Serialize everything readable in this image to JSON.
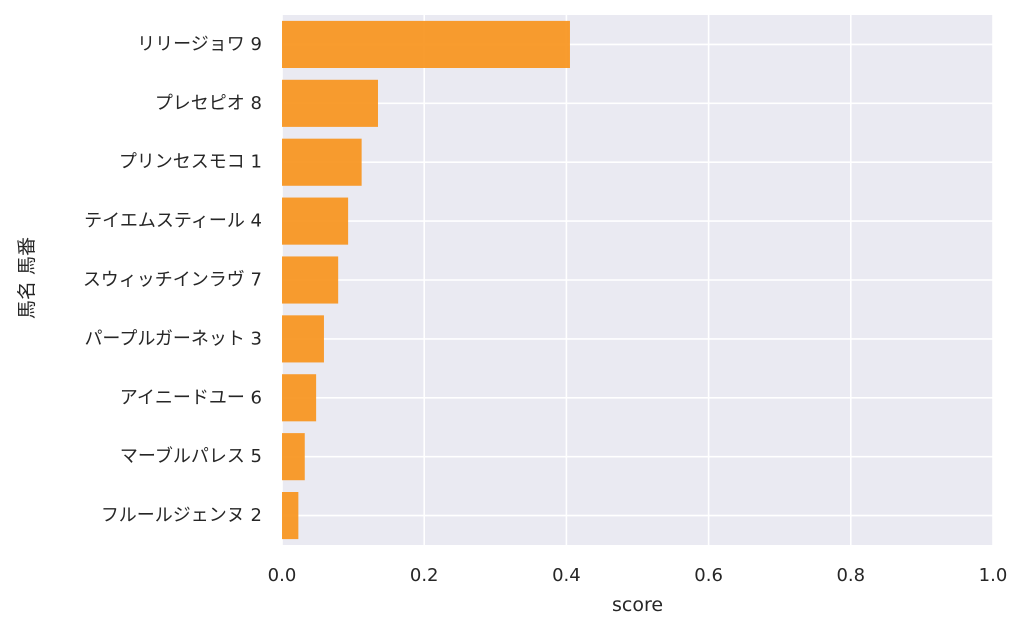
{
  "chart_data": {
    "type": "bar",
    "orientation": "horizontal",
    "categories": [
      "リリージョワ 9",
      "プレセピオ 8",
      "プリンセスモコ 1",
      "テイエムスティール 4",
      "スウィッチインラヴ 7",
      "パープルガーネット 3",
      "アイニードユー 6",
      "マーブルパレス 5",
      "フルールジェンヌ 2"
    ],
    "values": [
      0.405,
      0.135,
      0.112,
      0.093,
      0.079,
      0.059,
      0.048,
      0.032,
      0.023
    ],
    "xlabel": "score",
    "ylabel": "馬名 馬番",
    "xlim": [
      0,
      1.0
    ],
    "xticks": [
      "0.0",
      "0.2",
      "0.4",
      "0.6",
      "0.8",
      "1.0"
    ],
    "grid": true,
    "colors": {
      "bar": "#f7941d",
      "background": "#eaeaf2",
      "grid": "#ffffff",
      "text": "#262626"
    }
  }
}
